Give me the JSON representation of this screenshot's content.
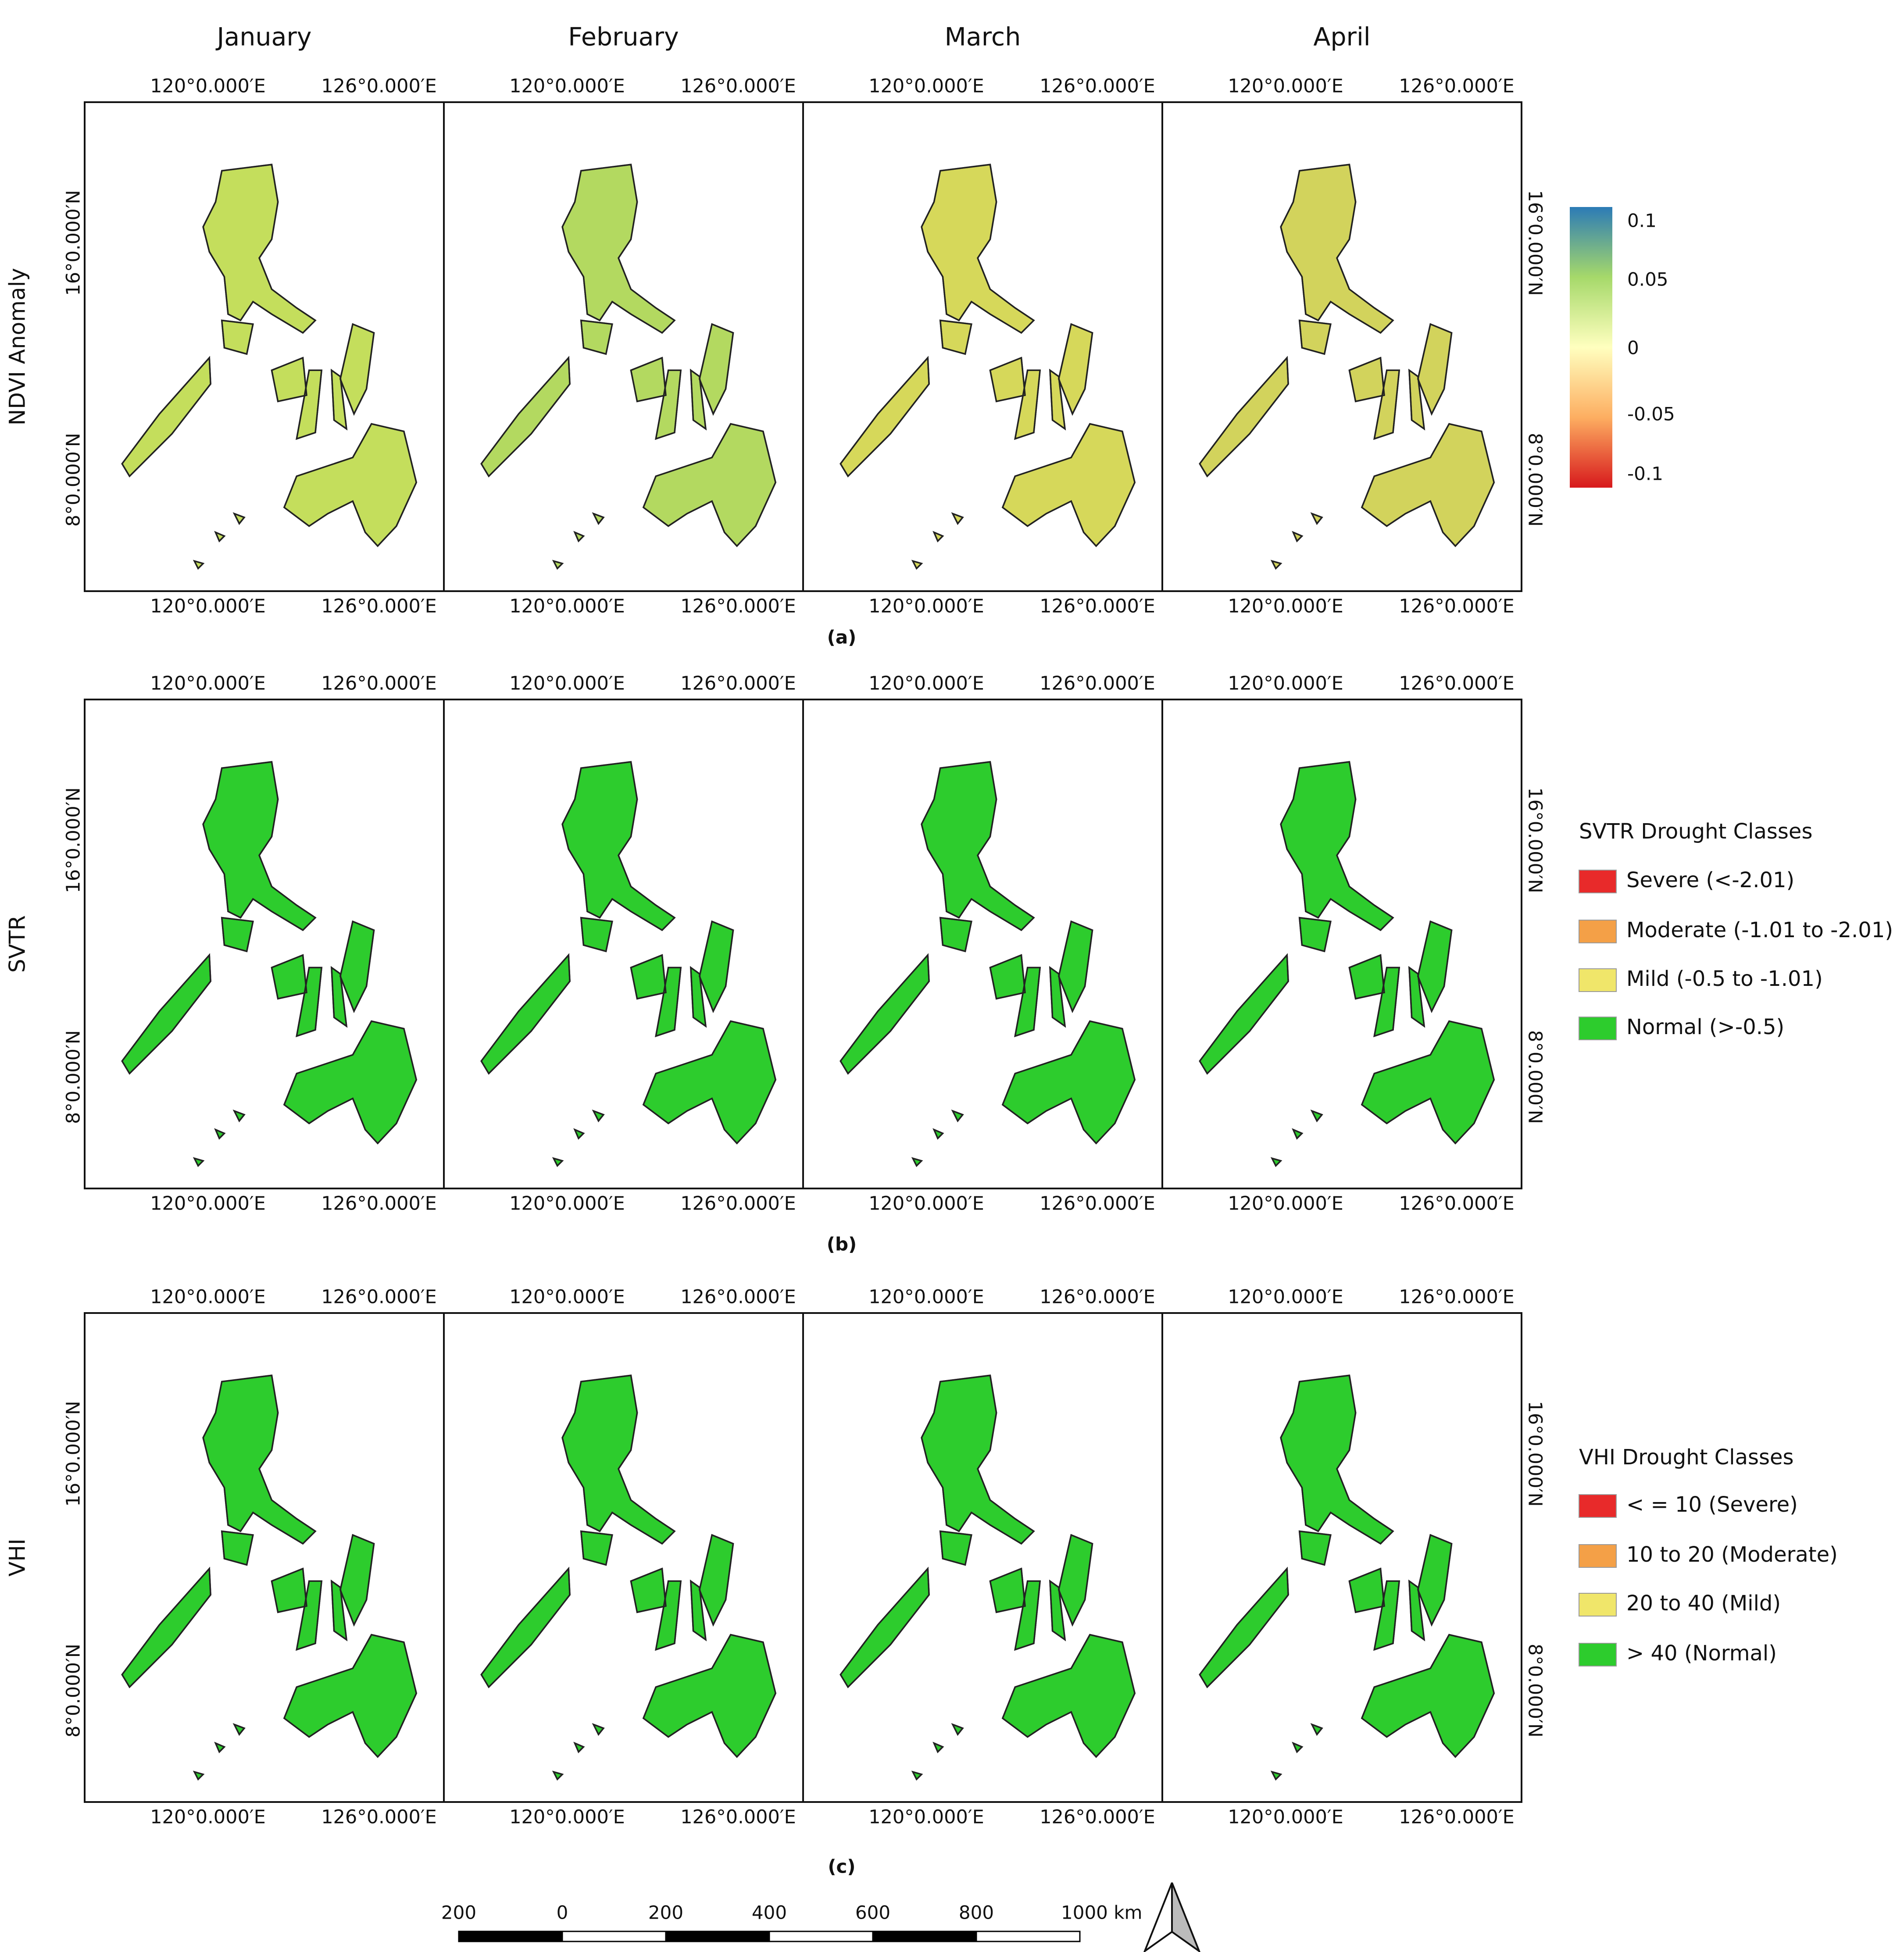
{
  "columns": [
    "January",
    "February",
    "March",
    "April"
  ],
  "rows": [
    {
      "label": "NDVI Anomaly",
      "caption": "(a)"
    },
    {
      "label": "SVTR",
      "caption": "(b)"
    },
    {
      "label": "VHI",
      "caption": "(c)"
    }
  ],
  "axes": {
    "lon_west": "120°0.000′E",
    "lon_east": "126°0.000′E",
    "lat_north": "16°0.000′N",
    "lat_south": "8°0.000′N"
  },
  "ndvi_legend": {
    "ticks": [
      "0.1",
      "0.05",
      "0",
      "-0.05",
      "-0.1"
    ]
  },
  "svtr_legend": {
    "title": "SVTR Drought Classes",
    "items": [
      "Severe (<-2.01)",
      "Moderate (-1.01 to -2.01)",
      "Mild (-0.5 to -1.01)",
      "Normal (>-0.5)"
    ]
  },
  "vhi_legend": {
    "title": "VHI Drought Classes",
    "items": [
      "< = 10 (Severe)",
      "10 to 20 (Moderate)",
      "20 to 40 (Mild)",
      "> 40 (Normal)"
    ]
  },
  "scale_bar": {
    "labels": [
      "200",
      "0",
      "200",
      "400",
      "600",
      "800",
      "1000 km"
    ]
  }
}
